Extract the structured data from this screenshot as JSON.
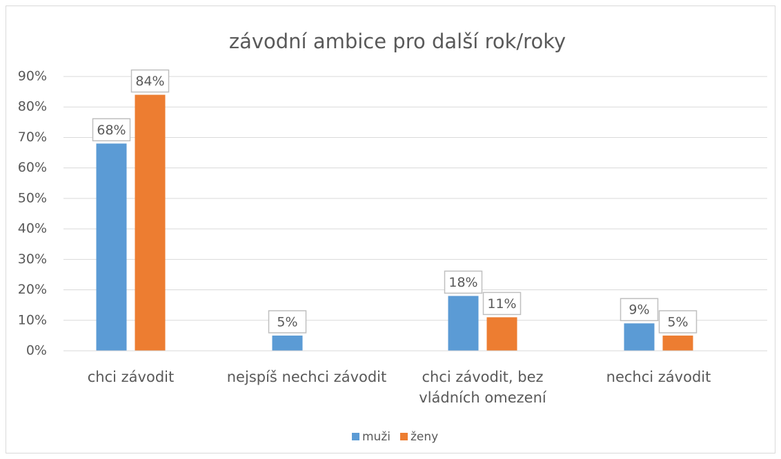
{
  "chart_data": {
    "type": "bar",
    "title": "závodní ambice pro další rok/roky",
    "categories": [
      "chci závodit",
      "nejspíš nechci závodit",
      "chci závodit, bez vládních omezení",
      "nechci závodit"
    ],
    "series": [
      {
        "name": "muži",
        "color": "#5b9bd5",
        "values": [
          68,
          5,
          18,
          9
        ],
        "value_labels": [
          "68%",
          "5%",
          "18%",
          "9%"
        ]
      },
      {
        "name": "ženy",
        "color": "#ed7d31",
        "values": [
          84,
          null,
          11,
          5
        ],
        "value_labels": [
          "84%",
          null,
          "11%",
          "5%"
        ]
      }
    ],
    "ylim": [
      0,
      90
    ],
    "yticks": [
      {
        "value": 0,
        "label": "0%"
      },
      {
        "value": 10,
        "label": "10%"
      },
      {
        "value": 20,
        "label": "20%"
      },
      {
        "value": 30,
        "label": "30%"
      },
      {
        "value": 40,
        "label": "40%"
      },
      {
        "value": 50,
        "label": "50%"
      },
      {
        "value": 60,
        "label": "60%"
      },
      {
        "value": 70,
        "label": "70%"
      },
      {
        "value": 80,
        "label": "80%"
      },
      {
        "value": 90,
        "label": "90%"
      }
    ],
    "grid": true,
    "legend": "bottom"
  }
}
